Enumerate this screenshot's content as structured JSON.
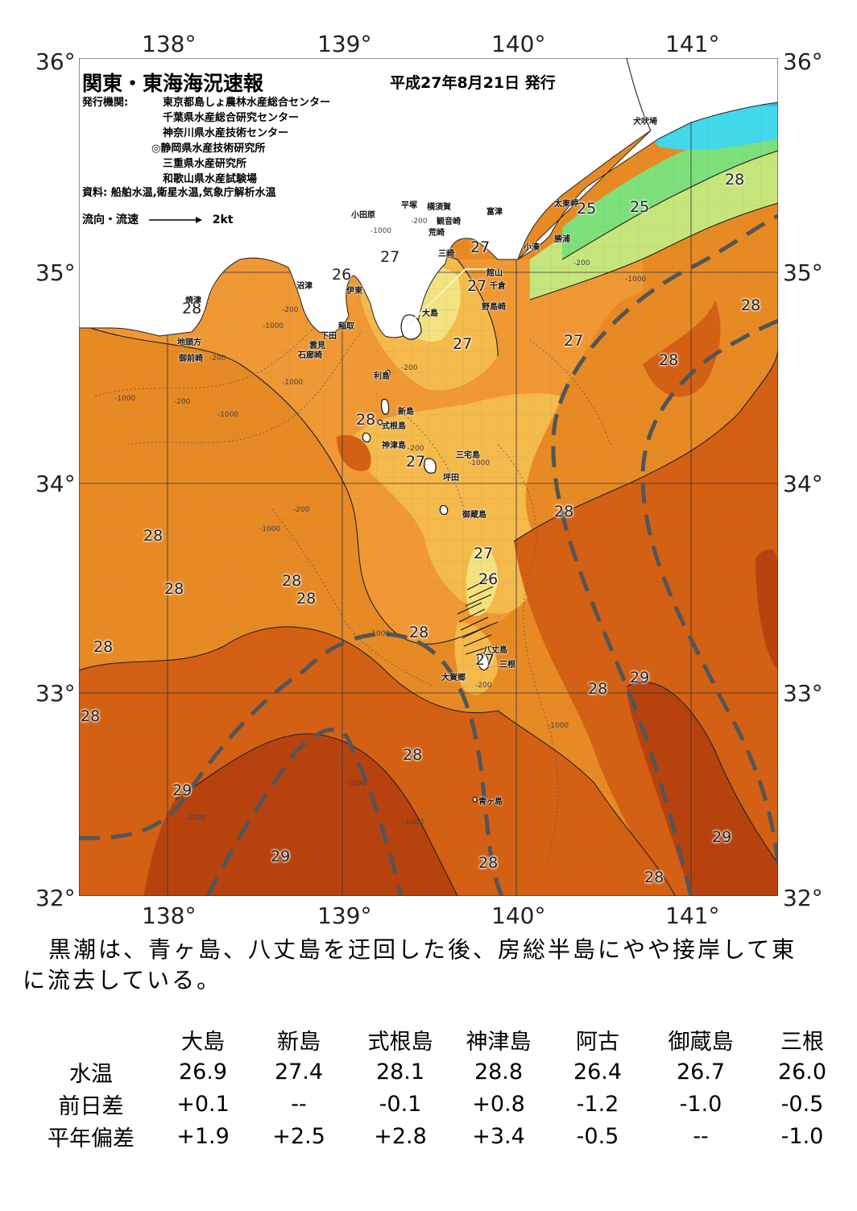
{
  "map": {
    "title": "関東・東海海況速報",
    "issue_date": "平成27年8月21日 発行",
    "publisher_label": "発行機関:",
    "publishers": [
      "東京都島しょ農林水産総合センター",
      "千葉県水産総合研究センター",
      "神奈川県水産技術センター",
      "◎静岡県水産技術研究所",
      "三重県水産研究所",
      "和歌山県水産試験場"
    ],
    "source": "資料: 船舶水温,衛星水温,気象庁解析水温",
    "legend_label": "流向・流速",
    "legend_scale": "2kt",
    "lon_labels": [
      "138°",
      "139°",
      "140°",
      "141°"
    ],
    "lat_labels": [
      "36°",
      "35°",
      "34°",
      "33°",
      "32°"
    ],
    "isotherm_labels": [
      "28",
      "27",
      "26",
      "27",
      "27",
      "27",
      "25",
      "25",
      "28",
      "28",
      "28",
      "28",
      "27",
      "27",
      "28",
      "28",
      "28",
      "28",
      "28",
      "27",
      "26",
      "28",
      "27",
      "28",
      "29",
      "28",
      "29",
      "28",
      "29",
      "28",
      "29",
      "28",
      "28"
    ],
    "depth_labels": [
      "-200",
      "-1000",
      "-200",
      "-1000",
      "-200",
      "-1000",
      "-200",
      "-1000",
      "-200",
      "-1000",
      "-1000",
      "-1000",
      "-200",
      "-1000",
      "-1000",
      "-200",
      "-1000",
      "-200",
      "-1000",
      "-1000",
      "-1000",
      "-200"
    ],
    "place_names": [
      "犬吠埼",
      "小田原",
      "平塚",
      "横須賀",
      "観音崎",
      "富津",
      "荒崎",
      "三崎",
      "太東岬",
      "勝浦",
      "小湊",
      "館山",
      "千倉",
      "野島崎",
      "焼津",
      "沼津",
      "伊東",
      "稲取",
      "下田",
      "雲見",
      "石廊崎",
      "地頭方",
      "御前崎",
      "大島",
      "利島",
      "新島",
      "式根島",
      "神津島",
      "三宅島",
      "坪田",
      "御蔵島",
      "八丈島",
      "三根",
      "大賀郷",
      "青ヶ島"
    ],
    "colors": {
      "cold": "#41d9ea",
      "cool": "#7de07a",
      "t25": "#c6e67c",
      "t26": "#f3e27e",
      "t27": "#f5ba4c",
      "t27_5": "#f09834",
      "t28": "#e07a1a",
      "t28_5": "#d46014",
      "t29": "#b8420e",
      "kuroshio_axis": "#555555"
    }
  },
  "summary": "黒潮は、青ヶ島、八丈島を迂回した後、房総半島にやや接岸して東に流去している。",
  "table": {
    "stations": [
      "大島",
      "新島",
      "式根島",
      "神津島",
      "阿古",
      "御蔵島",
      "三根"
    ],
    "rows": [
      {
        "label": "水温",
        "values": [
          "26.9",
          "27.4",
          "28.1",
          "28.8",
          "26.4",
          "26.7",
          "26.0"
        ]
      },
      {
        "label": "前日差",
        "values": [
          "+0.1",
          "--",
          "-0.1",
          "+0.8",
          "-1.2",
          "-1.0",
          "-0.5"
        ]
      },
      {
        "label": "平年偏差",
        "values": [
          "+1.9",
          "+2.5",
          "+2.8",
          "+3.4",
          "-0.5",
          "--",
          "-1.0"
        ]
      }
    ]
  }
}
